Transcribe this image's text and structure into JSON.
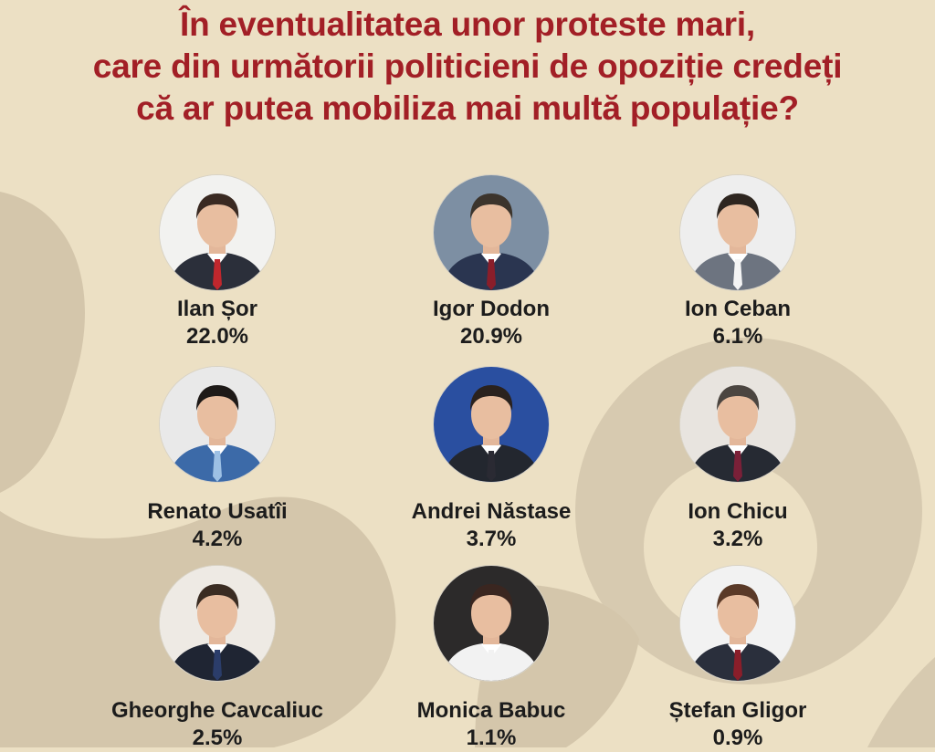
{
  "title_lines": [
    "În eventualitatea unor proteste mari,",
    "care din următorii politicieni de opoziție credeți",
    "că ar putea mobiliza mai multă populație?"
  ],
  "people": [
    {
      "name": "Ilan Șor",
      "percent": "22.0%",
      "value": 22.0,
      "photo": "portrait-photo",
      "bg": "#f2f2f0",
      "suit": "#2b2f3a",
      "tie": "#c0272d",
      "hair": "#3a2a22"
    },
    {
      "name": "Igor Dodon",
      "percent": "20.9%",
      "value": 20.9,
      "photo": "portrait-photo",
      "bg": "#7d8fa3",
      "suit": "#2a3550",
      "tie": "#8a1e2a",
      "hair": "#3c342c"
    },
    {
      "name": "Ion Ceban",
      "percent": "6.1%",
      "value": 6.1,
      "photo": "portrait-photo",
      "bg": "#eeeeee",
      "suit": "#6d7480",
      "tie": "#f4f4f4",
      "hair": "#2e2620"
    },
    {
      "name": "Renato Usatîi",
      "percent": "4.2%",
      "value": 4.2,
      "photo": "portrait-photo",
      "bg": "#e9e9e9",
      "suit": "#3c6aa8",
      "tie": "#9dc0e4",
      "hair": "#1e1a18"
    },
    {
      "name": "Andrei Năstase",
      "percent": "3.7%",
      "value": 3.7,
      "photo": "portrait-photo",
      "bg": "#2a4fa0",
      "suit": "#23272f",
      "tie": "#2a2a33",
      "hair": "#2a221e"
    },
    {
      "name": "Ion Chicu",
      "percent": "3.2%",
      "value": 3.2,
      "photo": "portrait-photo",
      "bg": "#e8e4df",
      "suit": "#262a33",
      "tie": "#7a2038",
      "hair": "#4b4540"
    },
    {
      "name": "Gheorghe Cavcaliuc",
      "percent": "2.5%",
      "value": 2.5,
      "photo": "portrait-photo",
      "bg": "#eeeae4",
      "suit": "#1f2533",
      "tie": "#2b3d6a",
      "hair": "#3a2c22"
    },
    {
      "name": "Monica Babuc",
      "percent": "1.1%",
      "value": 1.1,
      "photo": "portrait-photo",
      "bg": "#2c2a2a",
      "suit": "#f2f2f2",
      "tie": "#f2f2f2",
      "hair": "#3a2620"
    },
    {
      "name": "Ștefan Gligor",
      "percent": "0.9%",
      "value": 0.9,
      "photo": "portrait-photo",
      "bg": "#f2f2f2",
      "suit": "#2a2f3c",
      "tie": "#8a1e2a",
      "hair": "#5a3a28"
    }
  ],
  "colors": {
    "background": "#ece0c4",
    "title": "#a21f26",
    "text": "#1c1c1c",
    "decor": "#d4c6ab"
  }
}
